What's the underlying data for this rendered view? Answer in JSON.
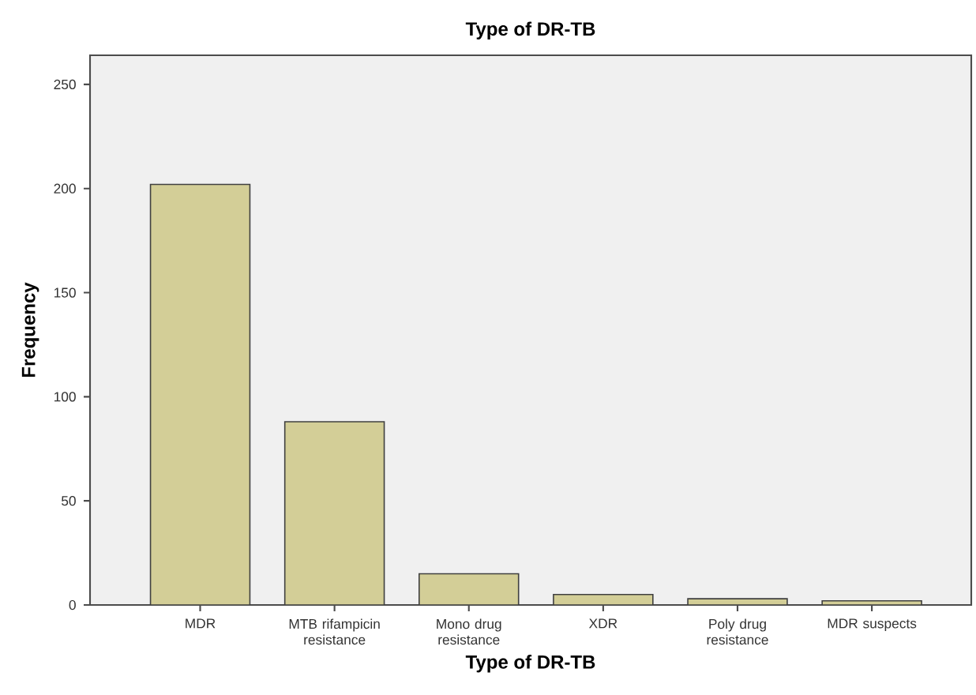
{
  "chart_data": {
    "type": "bar",
    "title": "Type of DR-TB",
    "xlabel": "Type of DR-TB",
    "ylabel": "Frequency",
    "categories": [
      "MDR",
      "MTB rifampicin resistance",
      "Mono drug resistance",
      "XDR",
      "Poly drug resistance",
      "MDR suspects"
    ],
    "values": [
      202,
      88,
      15,
      5,
      3,
      2
    ],
    "color": "#d3ce97",
    "ylim": [
      0,
      264
    ],
    "yticks": [
      0,
      50,
      100,
      150,
      200,
      250
    ],
    "grid": false
  }
}
